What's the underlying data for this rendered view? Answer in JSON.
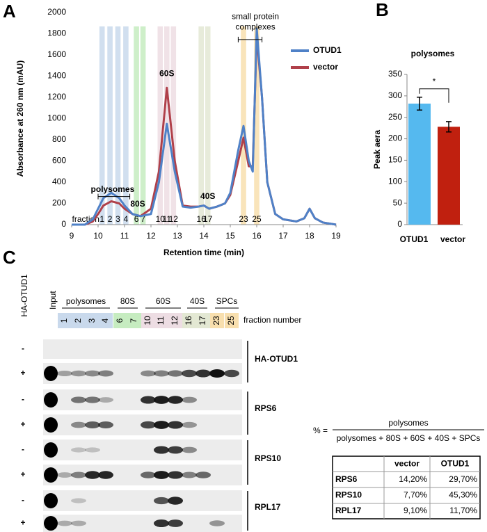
{
  "panel_labels": [
    "A",
    "B",
    "C"
  ],
  "chart_data": [
    {
      "type": "line",
      "y_label": "Absorbance at 260 nm (mAU)",
      "x_label": "Retention time (min)",
      "xlim": [
        9,
        19
      ],
      "xticks": [
        9,
        10,
        11,
        12,
        13,
        14,
        15,
        16,
        17,
        18,
        19
      ],
      "ylim": [
        0,
        2000
      ],
      "yticks": [
        0,
        200,
        400,
        600,
        800,
        1000,
        1200,
        1400,
        1600,
        1800,
        2000
      ],
      "legend": "upper right",
      "x": [
        9.0,
        9.5,
        9.8,
        10.0,
        10.2,
        10.5,
        10.8,
        11.0,
        11.3,
        11.6,
        12.0,
        12.3,
        12.6,
        12.9,
        13.2,
        13.5,
        13.8,
        14.0,
        14.2,
        14.5,
        14.8,
        15.0,
        15.3,
        15.5,
        15.7,
        15.85,
        16.0,
        16.2,
        16.4,
        16.7,
        17.0,
        17.5,
        17.8,
        18.0,
        18.2,
        18.5,
        19.0
      ],
      "series": [
        {
          "name": "OTUD1",
          "color": "#4f81c7",
          "values": [
            0,
            0,
            50,
            150,
            250,
            300,
            250,
            180,
            100,
            80,
            100,
            400,
            950,
            500,
            170,
            160,
            170,
            180,
            150,
            170,
            200,
            300,
            700,
            930,
            600,
            500,
            1850,
            1200,
            400,
            100,
            50,
            30,
            60,
            150,
            60,
            20,
            0
          ]
        },
        {
          "name": "vector",
          "color": "#b0404a",
          "values": [
            0,
            0,
            30,
            100,
            180,
            220,
            200,
            150,
            100,
            80,
            150,
            500,
            1290,
            600,
            180,
            170,
            170,
            180,
            150,
            170,
            200,
            280,
            600,
            820,
            550,
            550,
            1780,
            1200,
            400,
            100,
            50,
            30,
            60,
            150,
            60,
            20,
            0
          ]
        }
      ],
      "fraction_label": "fraction",
      "fractions": [
        {
          "label": "1",
          "x": 10.15,
          "color": "#c9d9ec"
        },
        {
          "label": "2",
          "x": 10.45,
          "color": "#c9d9ec"
        },
        {
          "label": "3",
          "x": 10.75,
          "color": "#c9d9ec"
        },
        {
          "label": "4",
          "x": 11.05,
          "color": "#c9d9ec"
        },
        {
          "label": "6",
          "x": 11.45,
          "color": "#c6ecc0"
        },
        {
          "label": "7",
          "x": 11.7,
          "color": "#c6ecc0"
        },
        {
          "label": "10",
          "x": 12.35,
          "color": "#eddde3"
        },
        {
          "label": "11",
          "x": 12.6,
          "color": "#eddde3"
        },
        {
          "label": "12",
          "x": 12.85,
          "color": "#eddde3"
        },
        {
          "label": "16",
          "x": 13.9,
          "color": "#e3e8d3"
        },
        {
          "label": "17",
          "x": 14.15,
          "color": "#e3e8d3"
        },
        {
          "label": "23",
          "x": 15.5,
          "color": "#f8dfae"
        },
        {
          "label": "25",
          "x": 16.0,
          "color": "#f8dfae"
        }
      ],
      "annotations": [
        "polysomes",
        "80S",
        "60S",
        "40S",
        "small protein",
        "complexes"
      ]
    },
    {
      "type": "bar",
      "title": "polysomes",
      "y_label": "Peak aera",
      "categories": [
        "OTUD1",
        "vector"
      ],
      "values": [
        282,
        228
      ],
      "errors": [
        15,
        12
      ],
      "colors": [
        "#55b9ef",
        "#c0200f"
      ],
      "ylim": [
        0,
        350
      ],
      "yticks": [
        0,
        50,
        100,
        150,
        200,
        250,
        300,
        350
      ],
      "significance": "*"
    }
  ],
  "blot": {
    "construct": "HA-OTUD1",
    "input": "Input",
    "groups": [
      "polysomes",
      "80S",
      "60S",
      "40S",
      "SPCs"
    ],
    "fractions": [
      "1",
      "2",
      "3",
      "4",
      "6",
      "7",
      "10",
      "11",
      "12",
      "16",
      "17",
      "23",
      "25"
    ],
    "fraction_caption": "fraction number",
    "rows": [
      "-",
      "+",
      "-",
      "+",
      "-",
      "+",
      "-",
      "+"
    ],
    "proteins": [
      "HA-OTUD1",
      "RPS6",
      "RPS10",
      "RPL17"
    ]
  },
  "formula": {
    "lhs": "% =",
    "numerator": "polysomes",
    "denominator": "polysomes + 80S + 60S + 40S + SPCs"
  },
  "table": {
    "header": [
      "vector",
      "OTUD1"
    ],
    "rows": [
      [
        "RPS6",
        "14,20%",
        "29,70%"
      ],
      [
        "RPS10",
        "7,70%",
        "45,30%"
      ],
      [
        "RPL17",
        "9,10%",
        "11,70%"
      ]
    ]
  }
}
